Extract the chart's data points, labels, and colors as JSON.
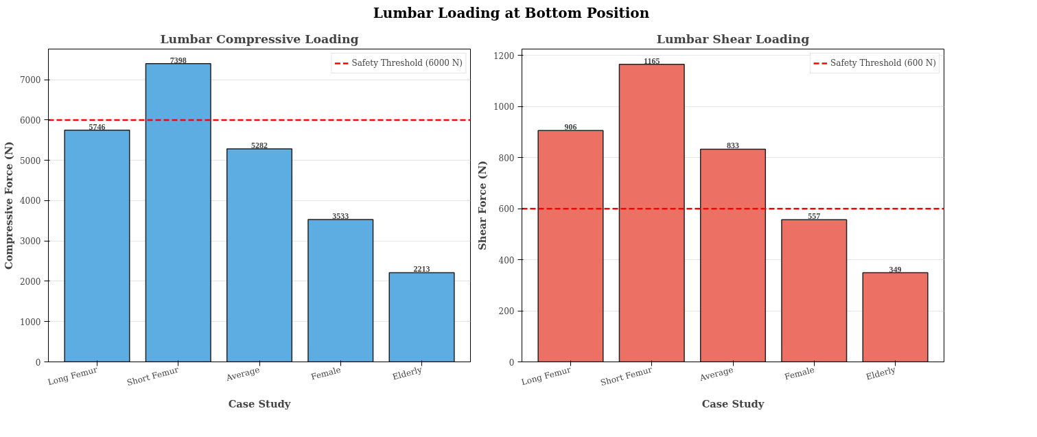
{
  "chart_data": [
    {
      "type": "bar",
      "title": "Lumbar Compressive Loading",
      "annotations": [
        "Lumbar Loading at Bottom Position"
      ],
      "xlabel": "Case Study",
      "ylabel": "Compressive Force (N)",
      "categories": [
        "Long Femur",
        "Short Femur",
        "Average",
        "Female",
        "Elderly"
      ],
      "series": [
        {
          "color": "#5dade2",
          "values": [
            5746,
            7398,
            5282,
            3533,
            2213
          ]
        }
      ],
      "ylim": [
        0,
        7760
      ],
      "yticks": [
        0,
        1000,
        2000,
        3000,
        4000,
        5000,
        6000,
        7000
      ],
      "grid": "y",
      "data_labels": true,
      "legend": "top right",
      "ref_lines": [
        {
          "axis": "y",
          "value": 6000,
          "label": "Safety Threshold (6000 N)",
          "color": "#ff0000",
          "line_style": "dashed"
        }
      ]
    },
    {
      "type": "bar",
      "title": "Lumbar Shear Loading",
      "xlabel": "Case Study",
      "ylabel": "Shear Force (N)",
      "categories": [
        "Long Femur",
        "Short Femur",
        "Average",
        "Female",
        "Elderly"
      ],
      "series": [
        {
          "color": "#ec7063",
          "values": [
            906,
            1165,
            833,
            557,
            349
          ]
        }
      ],
      "ylim": [
        0,
        1225
      ],
      "yticks": [
        0,
        200,
        400,
        600,
        800,
        1000,
        1200
      ],
      "grid": "y",
      "data_labels": true,
      "legend": "top right",
      "ref_lines": [
        {
          "axis": "y",
          "value": 600,
          "label": "Safety Threshold (600 N)",
          "color": "#ff0000",
          "line_style": "dashed"
        }
      ]
    }
  ]
}
